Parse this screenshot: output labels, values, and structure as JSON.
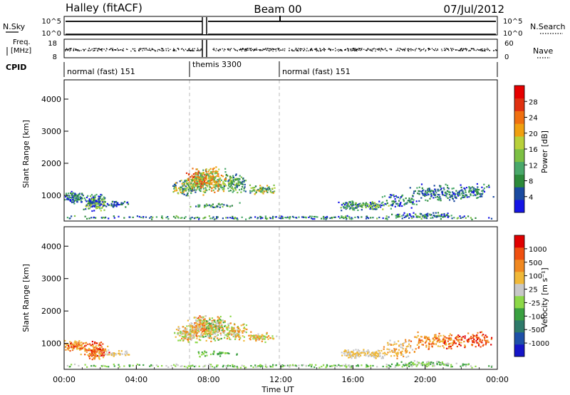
{
  "header": {
    "station": "Halley (fitACF)",
    "beam": "Beam 00",
    "date": "07/Jul/2012"
  },
  "top_panels": {
    "nsky_label": "N.Sky",
    "nsky_ticks": [
      "10^5",
      "10^0"
    ],
    "nsearch_label": "N.Search",
    "nsearch_ticks": [
      "10^5",
      "10^0"
    ],
    "freq_label_1": "Freq.",
    "freq_label_2": "[MHz]",
    "freq_ticks": [
      "18",
      "8"
    ],
    "nave_label": "Nave",
    "nave_ticks": [
      "60",
      "0"
    ],
    "cpid_label": "CPID",
    "cpid_segments": [
      {
        "label": "normal (fast) 151",
        "start": 0,
        "end": 7
      },
      {
        "label": "themis 3300",
        "start": 7,
        "end": 12
      },
      {
        "label": "normal (fast) 151",
        "start": 12,
        "end": 24
      }
    ]
  },
  "chart_data": [
    {
      "type": "heatmap",
      "name": "power",
      "ylabel": "Slant Range [km]",
      "ylim": [
        200,
        4600
      ],
      "xlim": [
        0,
        24
      ],
      "yticks": [
        "4000",
        "3000",
        "2000",
        "1000"
      ],
      "colorbar_label": "Power [dB]",
      "colorbar_ticks": [
        "28",
        "24",
        "20",
        "16",
        "12",
        "8",
        "4"
      ],
      "colors": [
        "#1515e6",
        "#1a4aa0",
        "#2c8a3a",
        "#49a86a",
        "#7cc044",
        "#b8d03a",
        "#f0a010",
        "#f07010",
        "#e03010",
        "#e60000"
      ]
    },
    {
      "type": "heatmap",
      "name": "velocity",
      "ylabel": "Slant Range [km]",
      "ylim": [
        200,
        4600
      ],
      "xlim": [
        0,
        24
      ],
      "yticks": [
        "4000",
        "3000",
        "2000",
        "1000"
      ],
      "colorbar_label": "Velocity [m s⁻¹]",
      "colorbar_ticks": [
        "1000",
        "500",
        "100",
        "25",
        "-25",
        "-100",
        "-500",
        "-1000"
      ],
      "colors": [
        "#1515c8",
        "#1e50a8",
        "#2e7a6a",
        "#3aa040",
        "#8cd848",
        "#c8c8c8",
        "#f0b838",
        "#f08820",
        "#f05010",
        "#e00000"
      ]
    }
  ],
  "xaxis": {
    "ticks": [
      "00:00",
      "04:00",
      "08:00",
      "12:00",
      "16:00",
      "20:00",
      "00:00"
    ],
    "label": "Time UT"
  }
}
